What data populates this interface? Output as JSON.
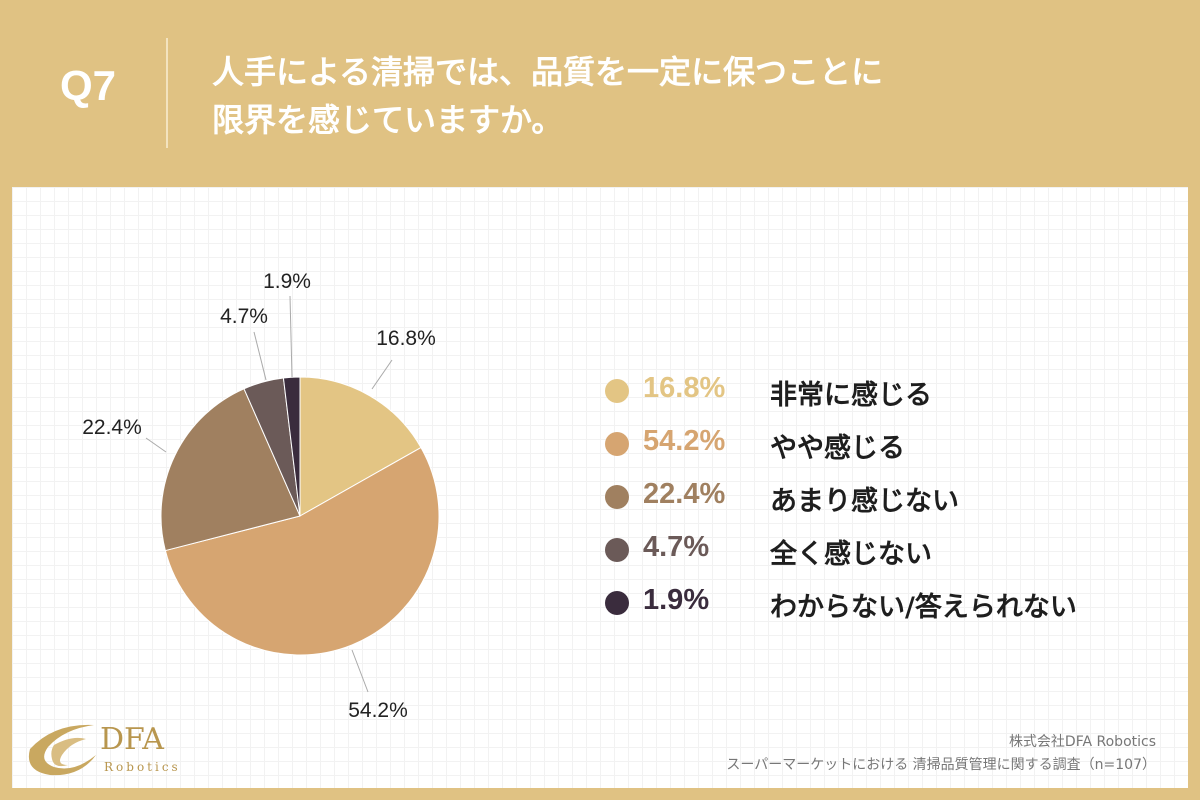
{
  "header": {
    "question_number": "Q7",
    "title_line1": "人手による清掃では、品質を一定に保つことに",
    "title_line2": "限界を感じていますか。"
  },
  "colors": {
    "background": "#e0c283",
    "panel": "#ffffff"
  },
  "chart_data": {
    "type": "pie",
    "title": "人手による清掃では、品質を一定に保つことに限界を感じていますか。",
    "slices": [
      {
        "label": "非常に感じる",
        "value": 16.8,
        "display": "16.8%",
        "color": "#e3c584"
      },
      {
        "label": "やや感じる",
        "value": 54.2,
        "display": "54.2%",
        "color": "#d6a571"
      },
      {
        "label": "あまり感じない",
        "value": 22.4,
        "display": "22.4%",
        "color": "#a08060"
      },
      {
        "label": "全く感じない",
        "value": 4.7,
        "display": "4.7%",
        "color": "#6b5a58"
      },
      {
        "label": "わからない/答えられない",
        "value": 1.9,
        "display": "1.9%",
        "color": "#3a2c3d"
      }
    ],
    "legend_position": "right"
  },
  "logo": {
    "name": "DFA",
    "sub": "Robotics"
  },
  "source": {
    "company": "株式会社DFA Robotics",
    "survey": "スーパーマーケットにおける 清掃品質管理に関する調査（n=107）"
  }
}
